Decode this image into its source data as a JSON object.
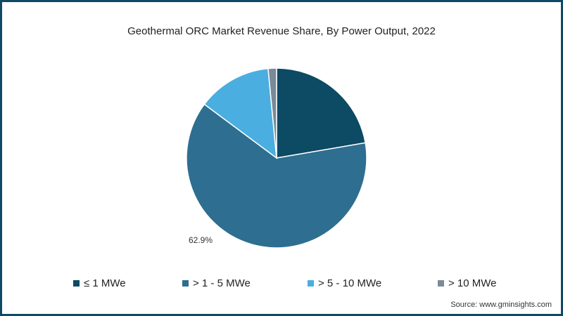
{
  "chart_data": {
    "type": "pie",
    "title": "Geothermal ORC Market Revenue Share, By Power Output, 2022",
    "series": [
      {
        "name": "≤ 1 MWe",
        "value": 22.3,
        "color": "#0d4a63"
      },
      {
        "name": "> 1 - 5 MWe",
        "value": 62.9,
        "color": "#2e6e90",
        "label": "62.9%"
      },
      {
        "name": "> 5 - 10 MWe",
        "value": 13.3,
        "color": "#4aaee0"
      },
      {
        "name": "> 10 MWe",
        "value": 1.5,
        "color": "#7b8a99"
      }
    ],
    "legend_position": "bottom",
    "start_angle": "12 o'clock, clockwise"
  },
  "source": "Source: www.gminsights.com"
}
